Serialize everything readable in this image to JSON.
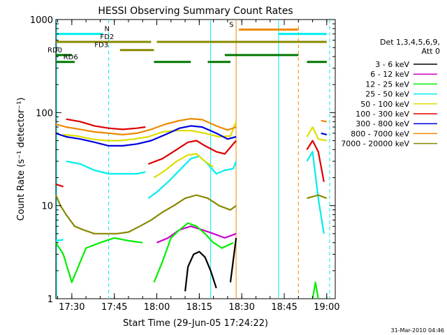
{
  "chart_data": {
    "type": "line",
    "title": "HESSI Observing Summary Count Rates",
    "xlabel": "Start Time (29-Jun-05 17:24:22)",
    "ylabel": "Count Rate (s⁻¹ detector⁻¹)",
    "yscale": "log",
    "ylim": [
      1,
      1000
    ],
    "xlim": [
      "17:24:22",
      "19:03:00"
    ],
    "x_ticks": [
      "17:30",
      "17:45",
      "18:00",
      "18:15",
      "18:30",
      "18:45",
      "19:00"
    ],
    "y_ticks": [
      "1",
      "10",
      "100",
      "1000"
    ],
    "footer": "31-Mar-2010 04:46",
    "legend": {
      "title": "Det 1,3,4,5,6,9,",
      "subtitle": "Att 0",
      "placement": "right"
    },
    "series": [
      {
        "name": "3 - 6 keV",
        "color": "#000000",
        "segments": [
          [
            [
              "18:10",
              1.2
            ],
            [
              "18:11",
              2.2
            ],
            [
              "18:13",
              3.0
            ],
            [
              "18:15",
              3.2
            ],
            [
              "18:17",
              2.8
            ],
            [
              "18:19",
              2.0
            ],
            [
              "18:21",
              1.3
            ]
          ],
          [
            [
              "18:26",
              1.5
            ],
            [
              "18:28",
              4.5
            ]
          ]
        ]
      },
      {
        "name": "6 - 12 keV",
        "color": "#cc00cc",
        "segments": [
          [
            [
              "18:00",
              4.0
            ],
            [
              "18:04",
              4.5
            ],
            [
              "18:08",
              5.5
            ],
            [
              "18:12",
              6.0
            ],
            [
              "18:16",
              5.5
            ],
            [
              "18:20",
              5.0
            ],
            [
              "18:24",
              4.5
            ],
            [
              "18:28",
              5.0
            ]
          ]
        ]
      },
      {
        "name": "12 - 25 keV",
        "color": "#00ee00",
        "segments": [
          [
            [
              "17:24:22",
              4.0
            ],
            [
              "17:27",
              3.0
            ],
            [
              "17:30",
              1.5
            ],
            [
              "17:35",
              3.5
            ],
            [
              "17:40",
              4.0
            ],
            [
              "17:45",
              4.5
            ],
            [
              "17:50",
              4.2
            ],
            [
              "17:55",
              4.0
            ]
          ],
          [
            [
              "17:59",
              1.5
            ],
            [
              "18:02",
              2.5
            ],
            [
              "18:05",
              4.5
            ],
            [
              "18:08",
              5.5
            ],
            [
              "18:11",
              6.5
            ],
            [
              "18:14",
              6.0
            ],
            [
              "18:17",
              5.0
            ],
            [
              "18:20",
              4.0
            ],
            [
              "18:23",
              3.5
            ],
            [
              "18:27",
              4.0
            ]
          ],
          [
            [
              "18:55",
              1.0
            ],
            [
              "18:56",
              1.5
            ],
            [
              "18:57",
              1.0
            ]
          ]
        ]
      },
      {
        "name": "25 - 50 keV",
        "color": "#00eeee",
        "segments": [
          [
            [
              "17:24:22",
              4.2
            ],
            [
              "17:27",
              4.3
            ]
          ],
          [
            [
              "17:28",
              30
            ],
            [
              "17:33",
              28
            ],
            [
              "17:38",
              24
            ],
            [
              "17:43",
              22
            ],
            [
              "17:48",
              22
            ],
            [
              "17:53",
              22
            ],
            [
              "17:56",
              23
            ]
          ],
          [
            [
              "17:57",
              12
            ],
            [
              "18:00",
              14
            ],
            [
              "18:04",
              18
            ],
            [
              "18:08",
              24
            ],
            [
              "18:12",
              32
            ],
            [
              "18:15",
              34
            ],
            [
              "18:18",
              28
            ],
            [
              "18:21",
              22
            ],
            [
              "18:24",
              24
            ],
            [
              "18:27",
              25
            ],
            [
              "18:28",
              30
            ]
          ],
          [
            [
              "18:53",
              30
            ],
            [
              "18:55",
              38
            ],
            [
              "18:57",
              12
            ],
            [
              "18:59",
              5
            ]
          ]
        ]
      },
      {
        "name": "50 - 100 keV",
        "color": "#dddd00",
        "segments": [
          [
            [
              "17:27",
              58
            ],
            [
              "17:32",
              56
            ],
            [
              "17:37",
              52
            ],
            [
              "17:42",
              50
            ],
            [
              "17:47",
              50
            ],
            [
              "17:52",
              52
            ],
            [
              "17:57",
              55
            ],
            [
              "18:02",
              62
            ],
            [
              "18:07",
              64
            ],
            [
              "18:12",
              64
            ],
            [
              "18:17",
              60
            ],
            [
              "18:22",
              55
            ],
            [
              "18:26",
              56
            ],
            [
              "18:28",
              80
            ]
          ],
          [
            [
              "17:59",
              20
            ],
            [
              "18:03",
              24
            ],
            [
              "18:07",
              30
            ],
            [
              "18:11",
              35
            ],
            [
              "18:14",
              36
            ],
            [
              "18:17",
              30
            ],
            [
              "18:20",
              26
            ]
          ],
          [
            [
              "18:53",
              55
            ],
            [
              "18:55",
              70
            ],
            [
              "18:57",
              52
            ],
            [
              "19:00",
              50
            ]
          ]
        ]
      },
      {
        "name": "100 - 300 keV",
        "color": "#dd0000",
        "segments": [
          [
            [
              "17:24:22",
              17
            ],
            [
              "17:27",
              16
            ]
          ],
          [
            [
              "17:28",
              85
            ],
            [
              "17:33",
              80
            ],
            [
              "17:38",
              72
            ],
            [
              "17:43",
              68
            ],
            [
              "17:48",
              66
            ],
            [
              "17:53",
              68
            ],
            [
              "17:56",
              70
            ]
          ],
          [
            [
              "17:57",
              28
            ],
            [
              "18:02",
              32
            ],
            [
              "18:07",
              40
            ],
            [
              "18:11",
              48
            ],
            [
              "18:14",
              50
            ],
            [
              "18:17",
              44
            ],
            [
              "18:21",
              38
            ],
            [
              "18:24",
              36
            ],
            [
              "18:28",
              50
            ]
          ],
          [
            [
              "18:53",
              40
            ],
            [
              "18:55",
              50
            ],
            [
              "18:57",
              38
            ],
            [
              "18:59",
              18
            ]
          ]
        ]
      },
      {
        "name": "300 - 800 keV",
        "color": "#0000dd",
        "segments": [
          [
            [
              "17:24:22",
              60
            ],
            [
              "17:28",
              55
            ],
            [
              "17:33",
              52
            ],
            [
              "17:38",
              48
            ],
            [
              "17:43",
              44
            ],
            [
              "17:48",
              44
            ],
            [
              "17:53",
              46
            ],
            [
              "17:58",
              50
            ],
            [
              "18:03",
              58
            ],
            [
              "18:08",
              68
            ],
            [
              "18:12",
              72
            ],
            [
              "18:16",
              70
            ],
            [
              "18:21",
              60
            ],
            [
              "18:25",
              52
            ],
            [
              "18:28",
              55
            ]
          ],
          [
            [
              "18:58",
              60
            ],
            [
              "19:00",
              58
            ]
          ]
        ]
      },
      {
        "name": "800 - 7000 keV",
        "color": "#ee8800",
        "segments": [
          [
            [
              "17:24:22",
              75
            ],
            [
              "17:28",
              70
            ],
            [
              "17:33",
              66
            ],
            [
              "17:38",
              62
            ],
            [
              "17:43",
              60
            ],
            [
              "17:48",
              58
            ],
            [
              "17:53",
              60
            ],
            [
              "17:58",
              66
            ],
            [
              "18:03",
              75
            ],
            [
              "18:08",
              82
            ],
            [
              "18:12",
              86
            ],
            [
              "18:16",
              84
            ],
            [
              "18:21",
              72
            ],
            [
              "18:25",
              65
            ],
            [
              "18:28",
              70
            ]
          ],
          [
            [
              "18:58",
              82
            ],
            [
              "19:00",
              80
            ]
          ]
        ]
      },
      {
        "name": "7000 - 20000 keV",
        "color": "#888800",
        "segments": [
          [
            [
              "17:24:22",
              13
            ],
            [
              "17:26",
              10
            ],
            [
              "17:28",
              8
            ],
            [
              "17:31",
              6
            ],
            [
              "17:34",
              5.5
            ],
            [
              "17:38",
              5
            ],
            [
              "17:42",
              5
            ],
            [
              "17:46",
              5
            ],
            [
              "17:50",
              5.2
            ],
            [
              "17:54",
              6
            ],
            [
              "17:58",
              7
            ],
            [
              "18:02",
              8.5
            ],
            [
              "18:06",
              10
            ],
            [
              "18:10",
              12
            ],
            [
              "18:14",
              13
            ],
            [
              "18:18",
              12
            ],
            [
              "18:22",
              10
            ],
            [
              "18:26",
              9
            ],
            [
              "18:28",
              10
            ]
          ],
          [
            [
              "18:53",
              12
            ],
            [
              "18:57",
              13
            ],
            [
              "19:00",
              12
            ]
          ]
        ]
      }
    ],
    "flag_bars": [
      {
        "label": "N",
        "color": "#00eeee",
        "y": 700,
        "spans": [
          [
            "17:24:22",
            "17:41"
          ],
          [
            "18:43",
            "19:00"
          ]
        ]
      },
      {
        "label": "S",
        "color": "#ee8800",
        "y": 780,
        "spans": [
          [
            "18:29",
            "18:50"
          ]
        ]
      },
      {
        "label": "FD2",
        "color": "#888800",
        "y": 575,
        "spans": [
          [
            "17:24:22",
            "17:58"
          ],
          [
            "18:00",
            "19:00"
          ]
        ]
      },
      {
        "label": "FD3",
        "color": "#888800",
        "y": 470,
        "spans": [
          [
            "17:47",
            "17:59"
          ]
        ]
      },
      {
        "label": "RD0",
        "color": "#007700",
        "y": 415,
        "spans": [
          [
            "17:24:22",
            "17:30"
          ],
          [
            "18:24",
            "18:50"
          ]
        ]
      },
      {
        "label": "RD6",
        "color": "#007700",
        "y": 350,
        "spans": [
          [
            "17:24:22",
            "17:31"
          ],
          [
            "17:59",
            "18:12"
          ],
          [
            "18:18",
            "18:26"
          ],
          [
            "18:53",
            "19:00"
          ]
        ]
      }
    ],
    "markers": [
      {
        "x": "17:24:22",
        "color": "#00eeee",
        "style": "solid"
      },
      {
        "x": "17:43",
        "color": "#00eeee",
        "style": "dashed"
      },
      {
        "x": "18:19",
        "color": "#00eeee",
        "style": "solid"
      },
      {
        "x": "18:28",
        "color": "#ee8800",
        "style": "solid"
      },
      {
        "x": "18:43",
        "color": "#00eeee",
        "style": "solid"
      },
      {
        "x": "18:50",
        "color": "#ee8800",
        "style": "dashed"
      },
      {
        "x": "19:01",
        "color": "#00eeee",
        "style": "dashed"
      }
    ]
  }
}
